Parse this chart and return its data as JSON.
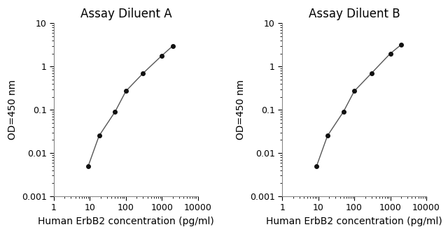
{
  "plot_A": {
    "title": "Assay Diluent A",
    "x": [
      9,
      18,
      50,
      100,
      300,
      1000,
      2000
    ],
    "y": [
      0.005,
      0.025,
      0.09,
      0.27,
      0.7,
      1.8,
      3.0
    ]
  },
  "plot_B": {
    "title": "Assay Diluent B",
    "x": [
      9,
      18,
      50,
      100,
      300,
      1000,
      2000
    ],
    "y": [
      0.005,
      0.025,
      0.09,
      0.27,
      0.7,
      2.0,
      3.2
    ]
  },
  "xlabel": "Human ErbB2 concentration (pg/ml)",
  "ylabel": "OD=450 nm",
  "xlim": [
    1,
    10000
  ],
  "ylim": [
    0.001,
    10
  ],
  "xticks": [
    1,
    10,
    100,
    1000,
    10000
  ],
  "xtick_labels": [
    "1",
    "10",
    "100",
    "1000",
    "10000"
  ],
  "yticks": [
    0.001,
    0.01,
    0.1,
    1,
    10
  ],
  "ytick_labels": [
    "0.001",
    "0.01",
    "0.1",
    "1",
    "10"
  ],
  "line_color": "#555555",
  "marker_color": "#111111",
  "marker_size": 4,
  "line_width": 1.0,
  "title_fontsize": 12,
  "label_fontsize": 10,
  "tick_fontsize": 9,
  "bg_color": "#ffffff"
}
